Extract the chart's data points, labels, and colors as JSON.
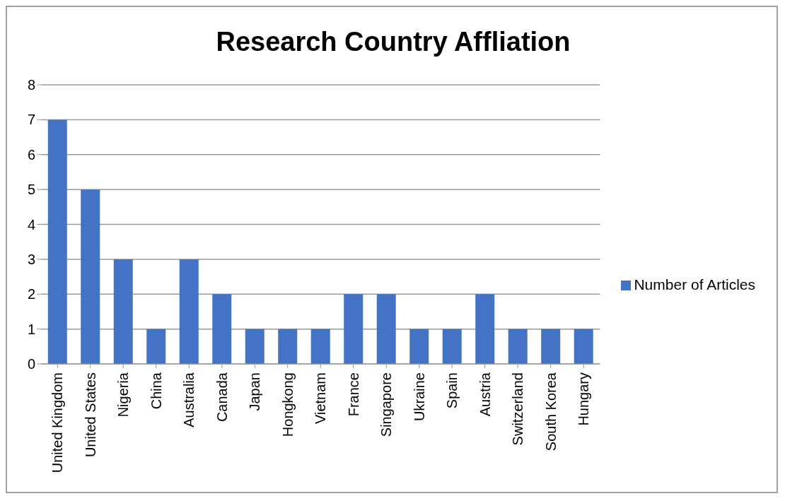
{
  "chart_data": {
    "type": "bar",
    "title": "Research Country Affliation",
    "categories": [
      "United Kingdom",
      "United States",
      "Nigeria",
      "China",
      "Australia",
      "Canada",
      "Japan",
      "Hongkong",
      "Vietnam",
      "France",
      "Singapore",
      "Ukraine",
      "Spain",
      "Austria",
      "Switzerland",
      "South Korea",
      "Hungary"
    ],
    "series": [
      {
        "name": "Number of Articles",
        "color": "#4472c4",
        "values": [
          7,
          5,
          3,
          1,
          3,
          2,
          1,
          1,
          1,
          2,
          2,
          1,
          1,
          2,
          1,
          1,
          1
        ]
      }
    ],
    "ylim": [
      0,
      8
    ],
    "yticks": [
      0,
      1,
      2,
      3,
      4,
      5,
      6,
      7,
      8
    ],
    "grid": "y",
    "legend": "right"
  }
}
